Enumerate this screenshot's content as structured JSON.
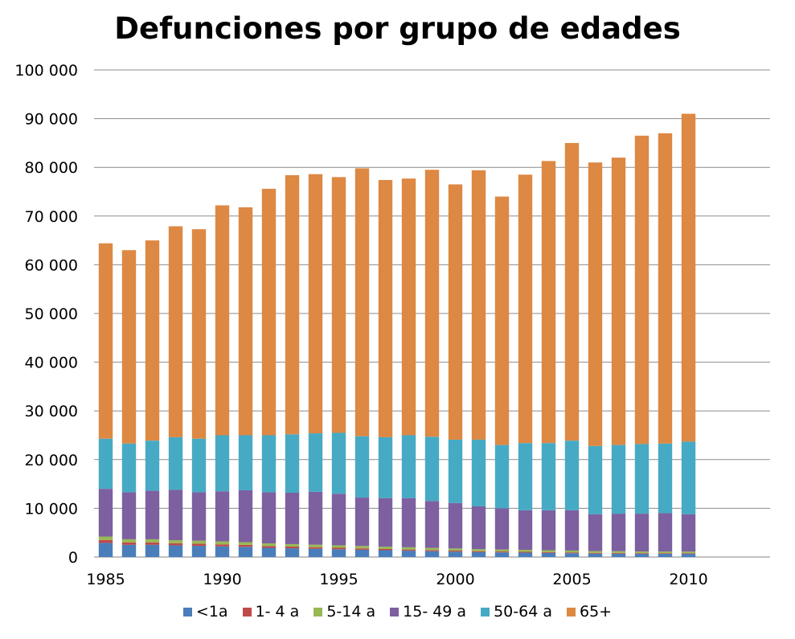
{
  "chart_data": {
    "type": "bar",
    "stacked": true,
    "title": "Defunciones por grupo de edades",
    "xlabel": "",
    "ylabel": "",
    "ylim": [
      0,
      100000
    ],
    "yticks": [
      0,
      10000,
      20000,
      30000,
      40000,
      50000,
      60000,
      70000,
      80000,
      90000,
      100000
    ],
    "ytick_labels": [
      "0",
      "10 000",
      "20 000",
      "30 000",
      "40 000",
      "50 000",
      "60 000",
      "70 000",
      "80 000",
      "90 000",
      "100 000"
    ],
    "xlim": [
      1984.5,
      2013.5
    ],
    "xticks": [
      1985,
      1990,
      1995,
      2000,
      2005,
      2010
    ],
    "xtick_labels": [
      "1985",
      "1990",
      "1995",
      "2000",
      "2005",
      "2010"
    ],
    "grid": true,
    "legend_position": "bottom",
    "categories": [
      1985,
      1986,
      1987,
      1988,
      1989,
      1990,
      1991,
      1992,
      1993,
      1994,
      1995,
      1996,
      1997,
      1998,
      1999,
      2000,
      2001,
      2002,
      2003,
      2004,
      2005,
      2006,
      2007,
      2008,
      2009,
      2010
    ],
    "series": [
      {
        "name": "<1a",
        "color": "#4a7ebb",
        "values": [
          2900,
          2500,
          2500,
          2400,
          2300,
          2200,
          2100,
          1900,
          1800,
          1700,
          1600,
          1500,
          1400,
          1300,
          1200,
          1100,
          1000,
          950,
          900,
          850,
          800,
          700,
          700,
          650,
          650,
          650
        ]
      },
      {
        "name": "1- 4 a",
        "color": "#be4b48",
        "values": [
          600,
          500,
          500,
          450,
          450,
          400,
          400,
          350,
          350,
          330,
          300,
          280,
          250,
          240,
          230,
          220,
          200,
          190,
          180,
          170,
          160,
          150,
          150,
          140,
          140,
          140
        ]
      },
      {
        "name": "5-14 a",
        "color": "#98b954",
        "values": [
          700,
          650,
          650,
          600,
          600,
          600,
          550,
          550,
          500,
          500,
          500,
          480,
          470,
          460,
          450,
          440,
          420,
          400,
          400,
          380,
          370,
          360,
          350,
          340,
          330,
          330
        ]
      },
      {
        "name": "15- 49 a",
        "color": "#7d60a0",
        "values": [
          9800,
          9650,
          9950,
          10350,
          9950,
          10300,
          10650,
          10500,
          10550,
          10870,
          10600,
          9940,
          9980,
          10100,
          9620,
          9340,
          8780,
          8460,
          8120,
          8200,
          8270,
          7590,
          7700,
          7770,
          7880,
          7680
        ]
      },
      {
        "name": "50-64 a",
        "color": "#46aac5",
        "values": [
          10300,
          10000,
          10300,
          10800,
          11000,
          11500,
          11300,
          11700,
          12000,
          12000,
          12500,
          12600,
          12500,
          12900,
          13200,
          13000,
          13700,
          13000,
          13800,
          13800,
          14300,
          14000,
          14100,
          14300,
          14300,
          14900
        ]
      },
      {
        "name": "65+",
        "color": "#dd8843",
        "values": [
          40100,
          39700,
          41100,
          43300,
          43000,
          47200,
          46800,
          50600,
          53200,
          53200,
          52500,
          55000,
          52800,
          52700,
          54800,
          52400,
          55300,
          51000,
          55100,
          57900,
          61100,
          58200,
          59000,
          63300,
          63700,
          67300
        ]
      }
    ]
  }
}
